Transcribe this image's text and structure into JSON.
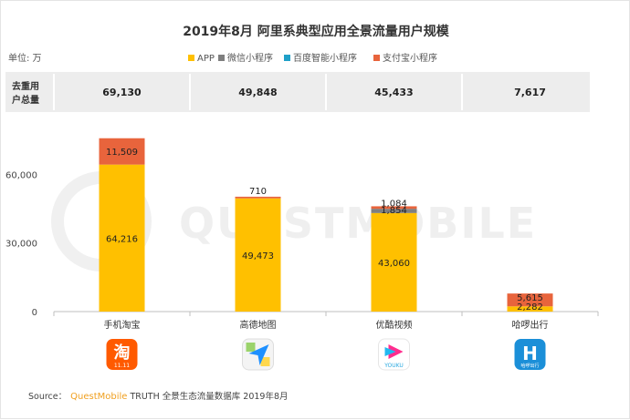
{
  "chart_data": {
    "type": "bar",
    "stacked": true,
    "title": "2019年8月 阿里系典型应用全景流量用户规模",
    "unit_label": "单位: 万",
    "categories": [
      "手机淘宝",
      "高德地图",
      "优酷视频",
      "哈啰出行"
    ],
    "series": [
      {
        "name": "APP",
        "color": "#ffc000",
        "values": [
          64216,
          49473,
          43060,
          2282
        ]
      },
      {
        "name": "微信小程序",
        "color": "#7f7f7f",
        "values": [
          0,
          0,
          1854,
          0
        ]
      },
      {
        "name": "百度智能小程序",
        "color": "#1fa0c8",
        "values": [
          0,
          0,
          0,
          0
        ]
      },
      {
        "name": "支付宝小程序",
        "color": "#e8643c",
        "values": [
          11509,
          710,
          1084,
          5615
        ]
      }
    ],
    "data_labels": [
      [
        "64,216",
        "",
        "",
        "11,509"
      ],
      [
        "49,473",
        "",
        "",
        "710"
      ],
      [
        "43,060",
        "1,854",
        "",
        "1,084"
      ],
      [
        "2,282",
        "",
        "",
        "5,615"
      ]
    ],
    "yticks": [
      "0",
      "30,000",
      "60,000"
    ],
    "ylim": [
      0,
      80000
    ],
    "xlabel": "",
    "ylabel": "",
    "legend_position": "top",
    "grid": false,
    "totals_row": {
      "label_line1": "去重用",
      "label_line2": "户总量",
      "values": [
        "69,130",
        "49,848",
        "45,433",
        "7,617"
      ]
    }
  },
  "app_icons": [
    {
      "name": "taobao-icon",
      "glyph": "淘",
      "color": "#ff5a00",
      "sub": "11.11"
    },
    {
      "name": "amap-icon",
      "glyph": "",
      "color": "#1e90ff"
    },
    {
      "name": "youku-icon",
      "glyph": "",
      "color": "#ff2d8e",
      "sub": "YOUKU"
    },
    {
      "name": "hellobike-icon",
      "glyph": "H",
      "color": "#1b8fd8",
      "sub": "哈啰出行"
    }
  ],
  "watermark": "QUESTMOBILE",
  "source": {
    "prefix": "Source：",
    "brand": "QuestMobile",
    "rest": "TRUTH 全景生态流量数据库 2019年8月"
  }
}
